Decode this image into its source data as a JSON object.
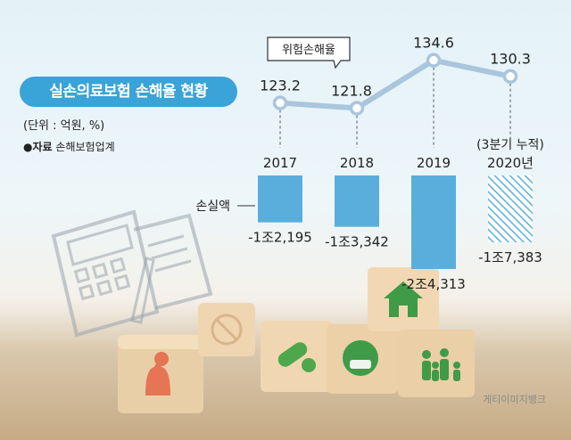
{
  "title": "실손의료보험 손해율 현황",
  "unit": "(단위 : 억원, %)",
  "source": {
    "marker": "●",
    "label": "자료",
    "text": "손해보험업계"
  },
  "credit": "게티이미지뱅크",
  "chart_data": {
    "type": "bar",
    "categories": [
      "2017",
      "2018",
      "2019",
      "2020년"
    ],
    "category_notes": [
      "",
      "",
      "",
      "(3분기 누적)"
    ],
    "loss_series": {
      "name": "손실액",
      "values": [
        -12195,
        -13342,
        -24313,
        -17383
      ],
      "labels": [
        "-1조2,195",
        "-1조3,342",
        "-2조4,313",
        "-1조7,383"
      ],
      "colors": [
        "#5aaedc",
        "#5aaedc",
        "#5aaedc",
        "hatched"
      ]
    },
    "ratio_series": {
      "name": "위험손해율",
      "values": [
        123.2,
        121.8,
        134.6,
        130.3
      ],
      "labels": [
        "123.2",
        "121.8",
        "134.6",
        "130.3"
      ]
    },
    "colors": {
      "line": "#a9c6dd",
      "bar": "#5aaedc",
      "accent": "#3aa3d7"
    }
  }
}
